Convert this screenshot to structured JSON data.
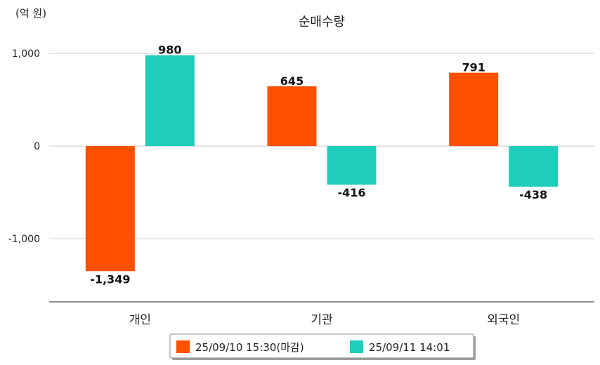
{
  "chart_data": {
    "type": "bar",
    "title": "순매수량",
    "unit_label": "(억 원)",
    "categories": [
      "개인",
      "기관",
      "외국인"
    ],
    "series": [
      {
        "name": "25/09/10 15:30(마감)",
        "color": "#ff5000",
        "values": [
          -1349,
          645,
          791
        ]
      },
      {
        "name": "25/09/11 14:01",
        "color": "#1ecdbb",
        "values": [
          980,
          -416,
          -438
        ]
      }
    ],
    "data_labels": [
      [
        "-1,349",
        "645",
        "791"
      ],
      [
        "980",
        "-416",
        "-438"
      ]
    ],
    "yticks": [
      1000,
      0,
      -1000
    ],
    "ytick_labels": [
      "1,000",
      "0",
      "-1,000"
    ],
    "ylim": [
      -1680,
      1000
    ],
    "grid": true,
    "legend_position": "bottom"
  }
}
